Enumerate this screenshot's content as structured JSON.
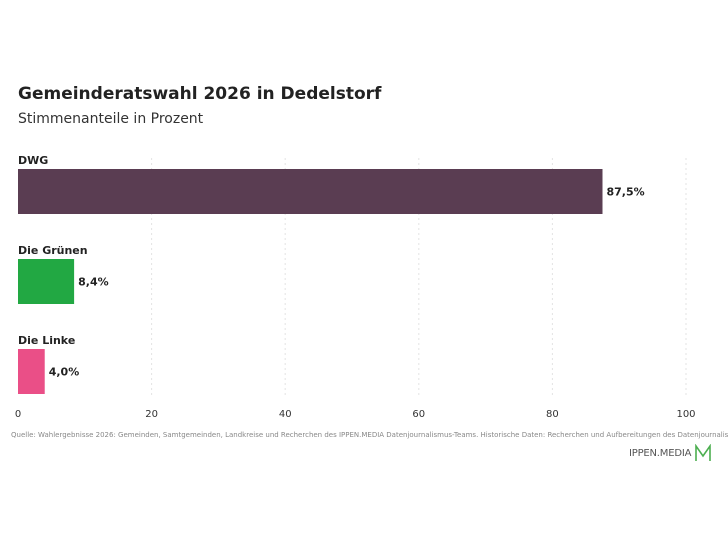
{
  "title": "Gemeinderatswahl 2026 in Dedelstorf",
  "subtitle": "Stimmenanteile in Prozent",
  "source": "Quelle: Wahlergebnisse 2026: Gemeinden, Samtgemeinden, Landkreise und Recherchen des IPPEN.MEDIA Datenjournalismus-Teams. Historische Daten: Recherchen und Aufbereitungen des Datenjournalismus-Teams",
  "brand": {
    "name": "IPPEN.MEDIA",
    "logo_icon": "ippen-media-logo-icon",
    "logo_color": "#4caf50"
  },
  "chart_data": {
    "type": "bar",
    "orientation": "horizontal",
    "categories": [
      "DWG",
      "Die Grünen",
      "Die Linke"
    ],
    "values": [
      87.5,
      8.4,
      4.0
    ],
    "value_labels": [
      "87,5%",
      "8,4%",
      "4,0%"
    ],
    "colors": [
      "#5a3d52",
      "#22a843",
      "#ea4f87"
    ],
    "xlim": [
      0,
      100
    ],
    "xticks": [
      "0",
      "20",
      "40",
      "60",
      "80",
      "100"
    ],
    "grid": true
  }
}
